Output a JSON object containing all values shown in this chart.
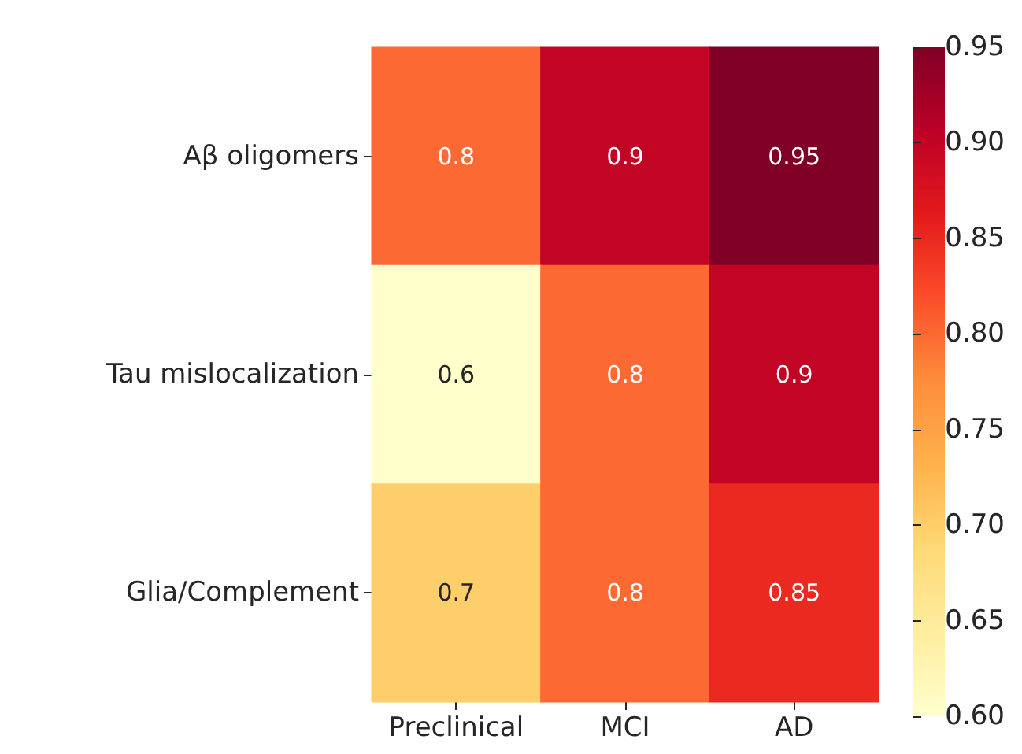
{
  "chart_data": {
    "type": "heatmap",
    "categories": [
      "Preclinical",
      "MCI",
      "AD"
    ],
    "y_categories": [
      "Aβ oligomers",
      "Tau mislocalization",
      "Glia/Complement"
    ],
    "cells": [
      [
        0.8,
        0.9,
        0.95
      ],
      [
        0.6,
        0.8,
        0.9
      ],
      [
        0.7,
        0.8,
        0.85
      ]
    ],
    "clim": [
      0.6,
      0.95
    ],
    "cticks": [
      {
        "value": 0.6,
        "label": "0.60"
      },
      {
        "value": 0.65,
        "label": "0.65"
      },
      {
        "value": 0.7,
        "label": "0.70"
      },
      {
        "value": 0.75,
        "label": "0.75"
      },
      {
        "value": 0.8,
        "label": "0.80"
      },
      {
        "value": 0.85,
        "label": "0.85"
      },
      {
        "value": 0.9,
        "label": "0.90"
      },
      {
        "value": 0.95,
        "label": "0.95"
      }
    ],
    "data_labels": true
  }
}
